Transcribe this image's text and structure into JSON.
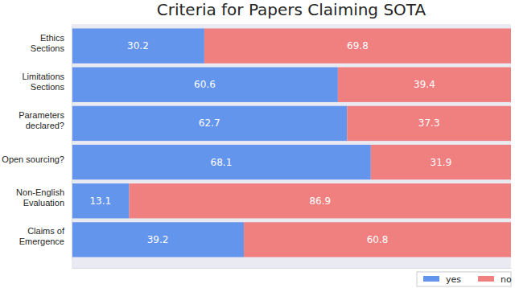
{
  "chart_data": {
    "type": "bar",
    "title": "Criteria for Papers Claiming SOTA",
    "orientation": "horizontal",
    "stacked": true,
    "data_labels": true,
    "legend": "bottom-right",
    "tick_labels": "y",
    "categories": [
      "Ethics\nSections",
      "Limitations\nSections",
      "Parameters\ndeclared?",
      "Open sourcing?",
      "Non-English\nEvaluation",
      "Claims of\nEmergence"
    ],
    "xlim": [
      0,
      100
    ],
    "series": [
      {
        "name": "yes",
        "color": "#6495ed",
        "values": [
          30.2,
          60.6,
          62.7,
          68.1,
          13.1,
          39.2
        ]
      },
      {
        "name": "no",
        "color": "#f08080",
        "values": [
          69.8,
          39.4,
          37.3,
          31.9,
          86.9,
          60.8
        ]
      }
    ]
  }
}
